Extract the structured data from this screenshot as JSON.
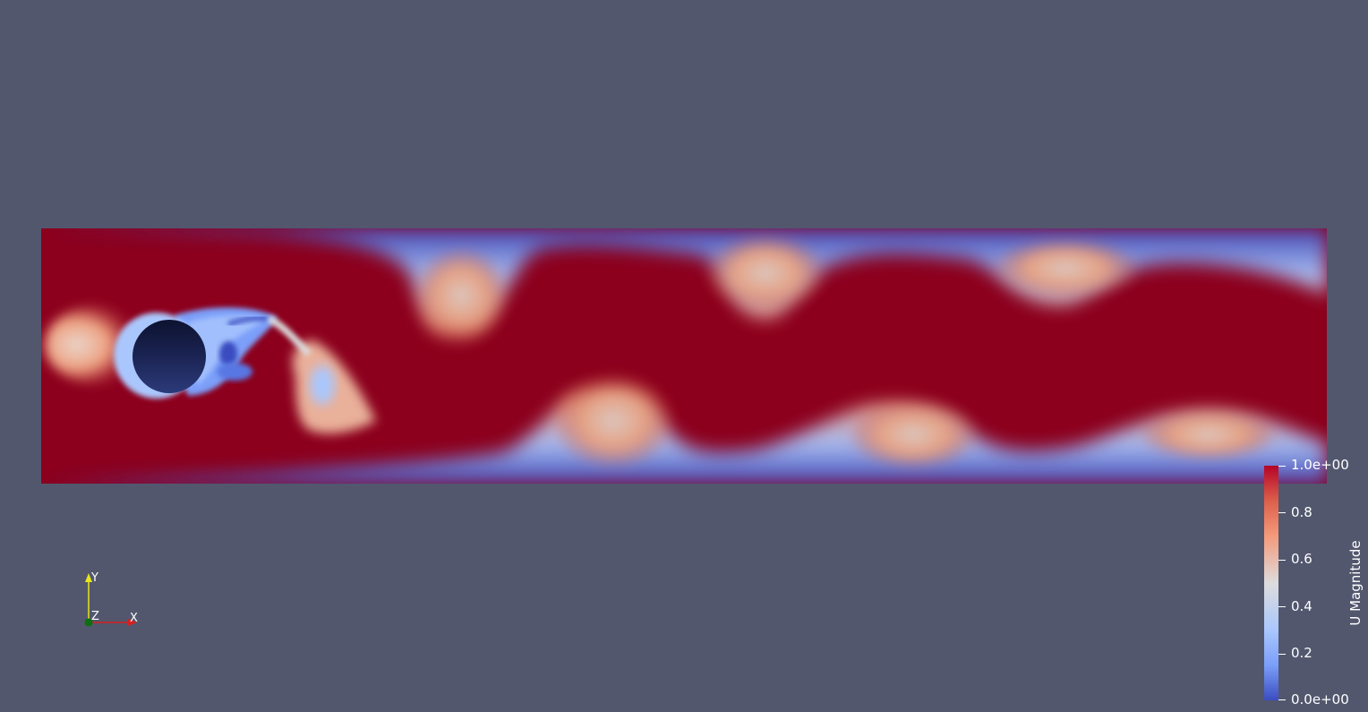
{
  "background_color": "#52576e",
  "field": {
    "name": "U Magnitude",
    "colormap": [
      "#3b4cc0",
      "#7b9ff9",
      "#aac7fd",
      "#dddcdc",
      "#f49a7b",
      "#dd5f4b",
      "#b40426"
    ],
    "high_velocity_color": "#8c001d",
    "obstacle_color": "#151c3d"
  },
  "axes": {
    "x_label": "X",
    "y_label": "Y",
    "z_label": "Z",
    "x_color": "#d71f1f",
    "y_color": "#e6e61a",
    "z_color": "#0f6e0f"
  },
  "colorbar": {
    "title": "U Magnitude",
    "ticks": [
      "1.0e+00",
      "0.8",
      "0.6",
      "0.4",
      "0.2",
      "0.0e+00"
    ],
    "range": [
      0.0,
      1.0
    ]
  }
}
